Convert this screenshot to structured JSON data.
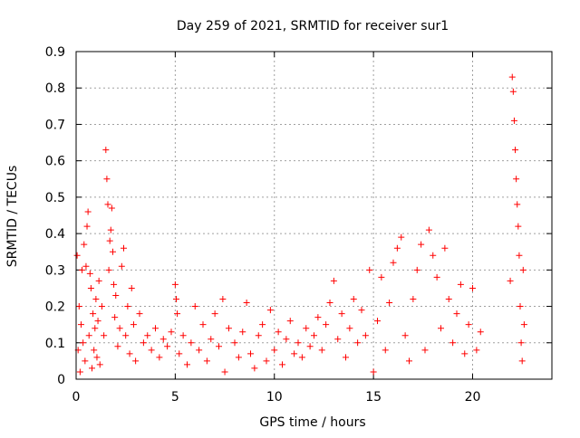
{
  "chart_data": {
    "type": "scatter",
    "title": "Day 259 of 2021, SRMTID for receiver sur1",
    "xlabel": "GPS time / hours",
    "ylabel": "SRMTID / TECUs",
    "xlim": [
      0,
      24
    ],
    "ylim": [
      0,
      0.9
    ],
    "xticks": [
      0,
      5,
      10,
      15,
      20
    ],
    "yticks": [
      0,
      0.1,
      0.2,
      0.3,
      0.4,
      0.5,
      0.6,
      0.7,
      0.8,
      0.9
    ],
    "xtick_labels": [
      "0",
      "5",
      "10",
      "15",
      "20"
    ],
    "ytick_labels": [
      "0",
      "0.1",
      "0.2",
      "0.3",
      "0.4",
      "0.5",
      "0.6",
      "0.7",
      "0.8",
      "0.9"
    ],
    "grid": true,
    "marker": "+",
    "color": "#ff0000",
    "series": [
      {
        "name": "sur1",
        "points": [
          [
            0.05,
            0.34
          ],
          [
            0.1,
            0.08
          ],
          [
            0.15,
            0.2
          ],
          [
            0.2,
            0.02
          ],
          [
            0.25,
            0.15
          ],
          [
            0.3,
            0.3
          ],
          [
            0.35,
            0.1
          ],
          [
            0.4,
            0.37
          ],
          [
            0.45,
            0.05
          ],
          [
            0.5,
            0.31
          ],
          [
            0.55,
            0.42
          ],
          [
            0.6,
            0.46
          ],
          [
            0.65,
            0.12
          ],
          [
            0.7,
            0.29
          ],
          [
            0.75,
            0.25
          ],
          [
            0.8,
            0.03
          ],
          [
            0.85,
            0.18
          ],
          [
            0.9,
            0.08
          ],
          [
            0.95,
            0.14
          ],
          [
            1.0,
            0.22
          ],
          [
            1.05,
            0.06
          ],
          [
            1.1,
            0.16
          ],
          [
            1.15,
            0.27
          ],
          [
            1.2,
            0.04
          ],
          [
            1.3,
            0.2
          ],
          [
            1.4,
            0.12
          ],
          [
            1.5,
            0.63
          ],
          [
            1.55,
            0.55
          ],
          [
            1.6,
            0.48
          ],
          [
            1.65,
            0.3
          ],
          [
            1.7,
            0.38
          ],
          [
            1.75,
            0.41
          ],
          [
            1.8,
            0.47
          ],
          [
            1.85,
            0.35
          ],
          [
            1.9,
            0.26
          ],
          [
            1.95,
            0.17
          ],
          [
            2.0,
            0.23
          ],
          [
            2.1,
            0.09
          ],
          [
            2.2,
            0.14
          ],
          [
            2.3,
            0.31
          ],
          [
            2.4,
            0.36
          ],
          [
            2.5,
            0.12
          ],
          [
            2.6,
            0.2
          ],
          [
            2.7,
            0.07
          ],
          [
            2.8,
            0.25
          ],
          [
            2.9,
            0.15
          ],
          [
            3.0,
            0.05
          ],
          [
            3.2,
            0.18
          ],
          [
            3.4,
            0.1
          ],
          [
            3.6,
            0.12
          ],
          [
            3.8,
            0.08
          ],
          [
            4.0,
            0.14
          ],
          [
            4.2,
            0.06
          ],
          [
            4.4,
            0.11
          ],
          [
            4.6,
            0.09
          ],
          [
            4.8,
            0.13
          ],
          [
            5.0,
            0.26
          ],
          [
            5.05,
            0.22
          ],
          [
            5.1,
            0.18
          ],
          [
            5.2,
            0.07
          ],
          [
            5.4,
            0.12
          ],
          [
            5.6,
            0.04
          ],
          [
            5.8,
            0.1
          ],
          [
            6.0,
            0.2
          ],
          [
            6.2,
            0.08
          ],
          [
            6.4,
            0.15
          ],
          [
            6.6,
            0.05
          ],
          [
            6.8,
            0.11
          ],
          [
            7.0,
            0.18
          ],
          [
            7.2,
            0.09
          ],
          [
            7.4,
            0.22
          ],
          [
            7.5,
            0.02
          ],
          [
            7.7,
            0.14
          ],
          [
            8.0,
            0.1
          ],
          [
            8.2,
            0.06
          ],
          [
            8.4,
            0.13
          ],
          [
            8.6,
            0.21
          ],
          [
            8.8,
            0.07
          ],
          [
            9.0,
            0.03
          ],
          [
            9.2,
            0.12
          ],
          [
            9.4,
            0.15
          ],
          [
            9.6,
            0.05
          ],
          [
            9.8,
            0.19
          ],
          [
            10.0,
            0.08
          ],
          [
            10.2,
            0.13
          ],
          [
            10.4,
            0.04
          ],
          [
            10.6,
            0.11
          ],
          [
            10.8,
            0.16
          ],
          [
            11.0,
            0.07
          ],
          [
            11.2,
            0.1
          ],
          [
            11.4,
            0.06
          ],
          [
            11.6,
            0.14
          ],
          [
            11.8,
            0.09
          ],
          [
            12.0,
            0.12
          ],
          [
            12.2,
            0.17
          ],
          [
            12.4,
            0.08
          ],
          [
            12.6,
            0.15
          ],
          [
            12.8,
            0.21
          ],
          [
            13.0,
            0.27
          ],
          [
            13.2,
            0.11
          ],
          [
            13.4,
            0.18
          ],
          [
            13.6,
            0.06
          ],
          [
            13.8,
            0.14
          ],
          [
            14.0,
            0.22
          ],
          [
            14.2,
            0.1
          ],
          [
            14.4,
            0.19
          ],
          [
            14.6,
            0.12
          ],
          [
            14.8,
            0.3
          ],
          [
            15.0,
            0.02
          ],
          [
            15.2,
            0.16
          ],
          [
            15.4,
            0.28
          ],
          [
            15.6,
            0.08
          ],
          [
            15.8,
            0.21
          ],
          [
            16.0,
            0.32
          ],
          [
            16.2,
            0.36
          ],
          [
            16.4,
            0.39
          ],
          [
            16.6,
            0.12
          ],
          [
            16.8,
            0.05
          ],
          [
            17.0,
            0.22
          ],
          [
            17.2,
            0.3
          ],
          [
            17.4,
            0.37
          ],
          [
            17.6,
            0.08
          ],
          [
            17.8,
            0.41
          ],
          [
            18.0,
            0.34
          ],
          [
            18.2,
            0.28
          ],
          [
            18.4,
            0.14
          ],
          [
            18.6,
            0.36
          ],
          [
            18.8,
            0.22
          ],
          [
            19.0,
            0.1
          ],
          [
            19.2,
            0.18
          ],
          [
            19.4,
            0.26
          ],
          [
            19.6,
            0.07
          ],
          [
            19.8,
            0.15
          ],
          [
            20.0,
            0.25
          ],
          [
            20.2,
            0.08
          ],
          [
            20.4,
            0.13
          ],
          [
            21.9,
            0.27
          ],
          [
            22.0,
            0.83
          ],
          [
            22.05,
            0.79
          ],
          [
            22.1,
            0.71
          ],
          [
            22.15,
            0.63
          ],
          [
            22.2,
            0.55
          ],
          [
            22.25,
            0.48
          ],
          [
            22.3,
            0.42
          ],
          [
            22.35,
            0.34
          ],
          [
            22.4,
            0.2
          ],
          [
            22.45,
            0.1
          ],
          [
            22.5,
            0.05
          ],
          [
            22.55,
            0.3
          ],
          [
            22.6,
            0.15
          ]
        ]
      }
    ]
  }
}
